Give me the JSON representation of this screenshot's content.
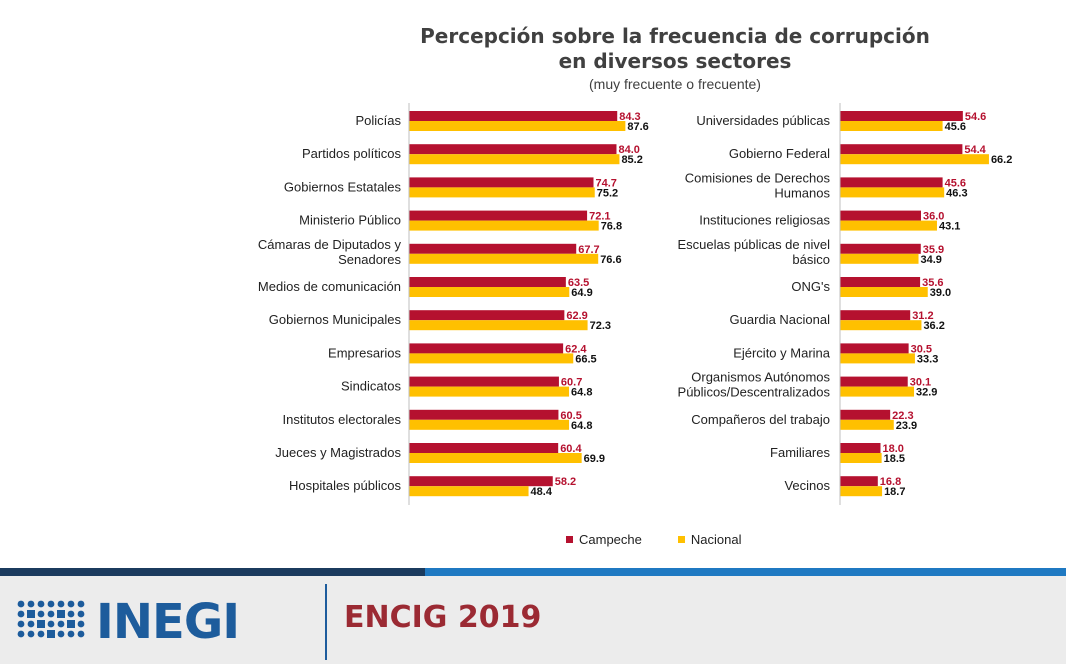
{
  "chart_data": [
    {
      "type": "bar",
      "title": "Percepción sobre la frecuencia de corrupción\nen diversos sectores",
      "subtitle": "(muy frecuente o frecuente)",
      "categories": [
        "Policías",
        "Partidos políticos",
        "Gobiernos Estatales",
        "Ministerio Público",
        "Cámaras de Diputados y Senadores",
        "Medios de comunicación",
        "Gobiernos Municipales",
        "Empresarios",
        "Sindicatos",
        "Institutos electorales",
        "Jueces y Magistrados",
        "Hospitales públicos"
      ],
      "series": [
        {
          "name": "Campeche",
          "values": [
            84.3,
            84.0,
            74.7,
            72.1,
            67.7,
            63.5,
            62.9,
            62.4,
            60.7,
            60.5,
            60.4,
            58.2
          ]
        },
        {
          "name": "Nacional",
          "values": [
            87.6,
            85.2,
            75.2,
            76.8,
            76.6,
            64.9,
            72.3,
            66.5,
            64.8,
            64.8,
            69.9,
            48.4
          ]
        }
      ]
    },
    {
      "type": "bar",
      "categories": [
        "Universidades públicas",
        "Gobierno Federal",
        "Comisiones de Derechos Humanos",
        "Instituciones religiosas",
        "Escuelas públicas de nivel básico",
        "ONG's",
        "Guardia Nacional",
        "Ejército y Marina",
        "Organismos Autónomos Públicos/Descentralizados",
        "Compañeros del trabajo",
        "Familiares",
        "Vecinos"
      ],
      "series": [
        {
          "name": "Campeche",
          "values": [
            54.6,
            54.4,
            45.6,
            36.0,
            35.9,
            35.6,
            31.2,
            30.5,
            30.1,
            22.3,
            18.0,
            16.8
          ]
        },
        {
          "name": "Nacional",
          "values": [
            45.6,
            66.2,
            46.3,
            43.1,
            34.9,
            39.0,
            36.2,
            33.3,
            32.9,
            23.9,
            18.5,
            18.7
          ]
        }
      ]
    }
  ],
  "colors": {
    "Campeche": "#b5112f",
    "Nacional": "#ffc000"
  },
  "title_line1": "Percepción sobre la frecuencia de corrupción",
  "title_line2": "en diversos sectores",
  "subtitle": "(muy frecuente o frecuente)",
  "legend": {
    "campeche": "Campeche",
    "nacional": "Nacional"
  },
  "footer": {
    "logo": "INEGI",
    "survey": "ENCIG 2019"
  },
  "logo_icon": "inegi-dots-logo-icon"
}
